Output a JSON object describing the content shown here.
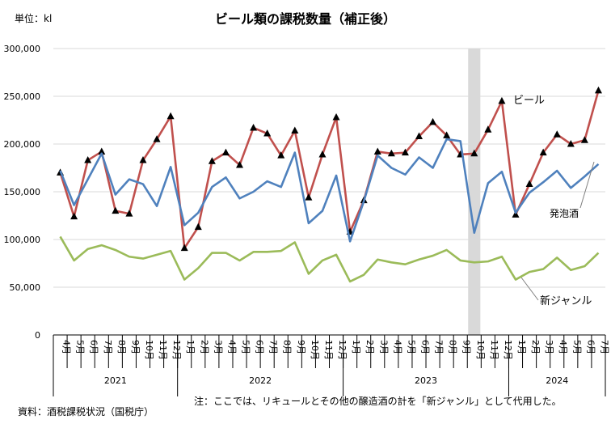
{
  "chart_data": {
    "type": "line",
    "title": "ビール類の課税数量（補正後）",
    "unit_label": "単位：kl",
    "ylim": [
      0,
      300000
    ],
    "yticks": [
      "0",
      "50,000",
      "100,000",
      "150,000",
      "200,000",
      "250,000",
      "300,000"
    ],
    "ytick_values": [
      0,
      50000,
      100000,
      150000,
      200000,
      250000,
      300000
    ],
    "grid": true,
    "x": [
      "4月",
      "5月",
      "6月",
      "7月",
      "8月",
      "9月",
      "10月",
      "11月",
      "12月",
      "1月",
      "2月",
      "3月",
      "4月",
      "5月",
      "6月",
      "7月",
      "8月",
      "9月",
      "10月",
      "11月",
      "12月",
      "1月",
      "2月",
      "3月",
      "4月",
      "5月",
      "6月",
      "7月",
      "8月",
      "9月",
      "10月",
      "11月",
      "12月",
      "1月",
      "2月",
      "3月",
      "4月",
      "5月",
      "6月",
      "7月"
    ],
    "year_groups": [
      {
        "label": "2021",
        "count": 9
      },
      {
        "label": "2022",
        "count": 12
      },
      {
        "label": "2023",
        "count": 12
      },
      {
        "label": "2024",
        "count": 7
      }
    ],
    "highlight_category": "10月",
    "highlight_year": "2023",
    "series": [
      {
        "name": "ビール",
        "color": "#c0504d",
        "marker": "triangle",
        "values": [
          170000,
          124000,
          183000,
          192000,
          130000,
          127000,
          183000,
          205000,
          229000,
          91000,
          113000,
          182000,
          191000,
          178000,
          217000,
          211000,
          188000,
          214000,
          144000,
          189000,
          228000,
          108000,
          141000,
          192000,
          190000,
          191000,
          208000,
          223000,
          209000,
          189000,
          190000,
          215000,
          245000,
          126000,
          158000,
          191000,
          210000,
          200000,
          204000,
          256000
        ]
      },
      {
        "name": "発泡酒",
        "color": "#4f81bd",
        "marker": "none",
        "values": [
          172000,
          136000,
          163000,
          190000,
          147000,
          163000,
          158000,
          135000,
          176000,
          115000,
          128000,
          155000,
          165000,
          143000,
          150000,
          161000,
          155000,
          191000,
          117000,
          130000,
          167000,
          98000,
          140000,
          188000,
          175000,
          168000,
          186000,
          175000,
          205000,
          203000,
          107000,
          159000,
          171000,
          128000,
          149000,
          160000,
          172000,
          154000,
          166000,
          179000
        ]
      },
      {
        "name": "新ジャンル",
        "color": "#9bbb59",
        "marker": "none",
        "values": [
          103000,
          78000,
          90000,
          94000,
          89000,
          82000,
          80000,
          84000,
          88000,
          58000,
          70000,
          86000,
          86000,
          78000,
          87000,
          87000,
          88000,
          97000,
          64000,
          78000,
          84000,
          56000,
          63000,
          79000,
          76000,
          74000,
          79000,
          83000,
          89000,
          78000,
          76000,
          77000,
          82000,
          58000,
          66000,
          69000,
          81000,
          68000,
          72000,
          86000
        ]
      }
    ],
    "source": "資料：酒税課税状況（国税庁）",
    "note": "注：ここでは、リキュールとその他の醸造酒の計を「新ジャンル」として代用した。"
  }
}
